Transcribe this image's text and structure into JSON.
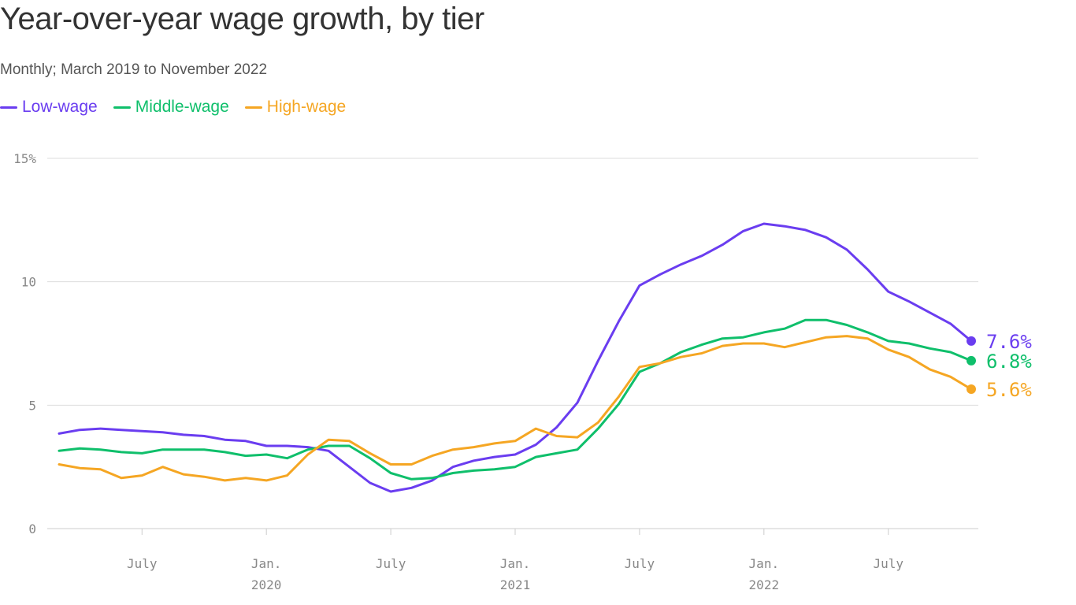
{
  "title": "Year-over-year wage growth, by tier",
  "subtitle": "Monthly; March 2019 to November 2022",
  "chart_data": {
    "type": "line",
    "start_month": "2019-03",
    "end_month": "2022-11",
    "ylim": [
      0,
      15
    ],
    "y_ticks": [
      {
        "value": 0,
        "label": "0"
      },
      {
        "value": 5,
        "label": "5"
      },
      {
        "value": 10,
        "label": "10"
      },
      {
        "value": 15,
        "label": "15%"
      }
    ],
    "x_ticks": [
      {
        "month": "2019-07",
        "label": "July",
        "year": ""
      },
      {
        "month": "2020-01",
        "label": "Jan.",
        "year": "2020"
      },
      {
        "month": "2020-07",
        "label": "July",
        "year": ""
      },
      {
        "month": "2021-01",
        "label": "Jan.",
        "year": "2021"
      },
      {
        "month": "2021-07",
        "label": "July",
        "year": ""
      },
      {
        "month": "2022-01",
        "label": "Jan.",
        "year": "2022"
      },
      {
        "month": "2022-07",
        "label": "July",
        "year": ""
      }
    ],
    "grid": true,
    "legend_position": "top-left",
    "series": [
      {
        "name": "Low-wage",
        "color": "#6a3df0",
        "end_label": "7.6%",
        "values": [
          3.85,
          4.0,
          4.05,
          4.0,
          3.95,
          3.9,
          3.8,
          3.75,
          3.6,
          3.55,
          3.35,
          3.35,
          3.3,
          3.15,
          2.5,
          1.85,
          1.5,
          1.65,
          1.95,
          2.5,
          2.75,
          2.9,
          3.0,
          3.4,
          4.1,
          5.1,
          6.8,
          8.4,
          9.85,
          10.3,
          10.7,
          11.05,
          11.5,
          12.05,
          12.35,
          12.25,
          12.1,
          11.8,
          11.3,
          10.5,
          9.6,
          9.2,
          8.75,
          8.3,
          7.6
        ]
      },
      {
        "name": "Middle-wage",
        "color": "#0fbf6b",
        "end_label": "6.8%",
        "values": [
          3.15,
          3.25,
          3.2,
          3.1,
          3.05,
          3.2,
          3.2,
          3.2,
          3.1,
          2.95,
          3.0,
          2.85,
          3.2,
          3.35,
          3.35,
          2.85,
          2.25,
          2.0,
          2.05,
          2.25,
          2.35,
          2.4,
          2.5,
          2.9,
          3.05,
          3.2,
          4.05,
          5.05,
          6.35,
          6.7,
          7.15,
          7.45,
          7.7,
          7.75,
          7.95,
          8.1,
          8.45,
          8.45,
          8.25,
          7.95,
          7.6,
          7.5,
          7.3,
          7.15,
          6.8
        ]
      },
      {
        "name": "High-wage",
        "color": "#f5a623",
        "end_label": "5.6%",
        "values": [
          2.6,
          2.45,
          2.4,
          2.05,
          2.15,
          2.5,
          2.2,
          2.1,
          1.95,
          2.05,
          1.95,
          2.15,
          3.0,
          3.6,
          3.55,
          3.05,
          2.6,
          2.6,
          2.95,
          3.2,
          3.3,
          3.45,
          3.55,
          4.05,
          3.75,
          3.7,
          4.3,
          5.35,
          6.55,
          6.7,
          6.95,
          7.1,
          7.4,
          7.5,
          7.5,
          7.35,
          7.55,
          7.75,
          7.8,
          7.7,
          7.25,
          6.95,
          6.45,
          6.15,
          5.65
        ]
      }
    ]
  }
}
